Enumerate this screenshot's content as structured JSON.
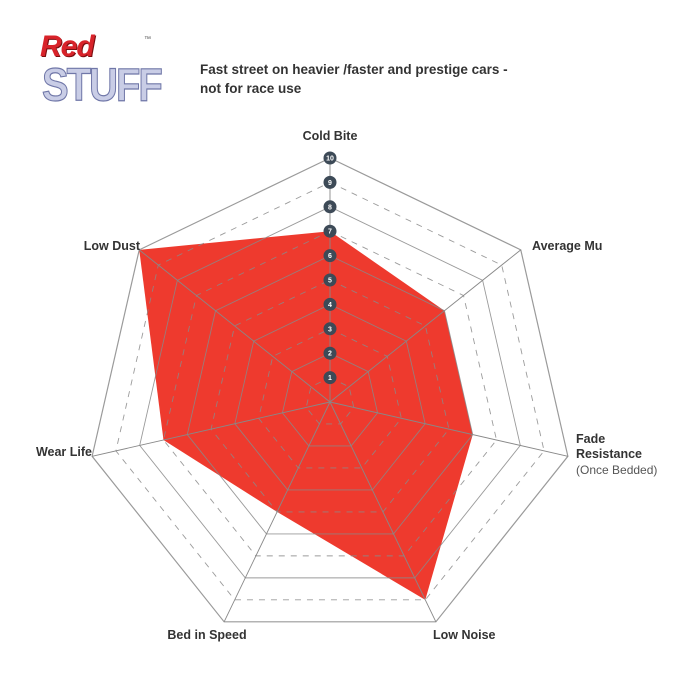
{
  "logo": {
    "line1": "Red",
    "line2": "STUFF",
    "tm": "™"
  },
  "subtitle": [
    "Fast street on heavier /faster and prestige cars -",
    "not for race use"
  ],
  "chart_data": {
    "type": "radar",
    "axes": [
      {
        "label": "Cold Bite",
        "value": 7
      },
      {
        "label": "Average Mu",
        "value": 6
      },
      {
        "label": "Fade Resistance",
        "sublabel": "(Once Bedded)",
        "value": 6
      },
      {
        "label": "Low Noise",
        "value": 9
      },
      {
        "label": "Bed in Speed",
        "value": 5
      },
      {
        "label": "Wear Life",
        "value": 7
      },
      {
        "label": "Low Dust",
        "value": 10
      }
    ],
    "scale": {
      "min": 0,
      "max": 10,
      "ticks": [
        "1",
        "2",
        "3",
        "4",
        "5",
        "6",
        "7",
        "8",
        "9",
        "10"
      ]
    },
    "colors": {
      "fill": "#ee3a2e",
      "grid": "#999999",
      "marker": "#3d4a57"
    }
  }
}
